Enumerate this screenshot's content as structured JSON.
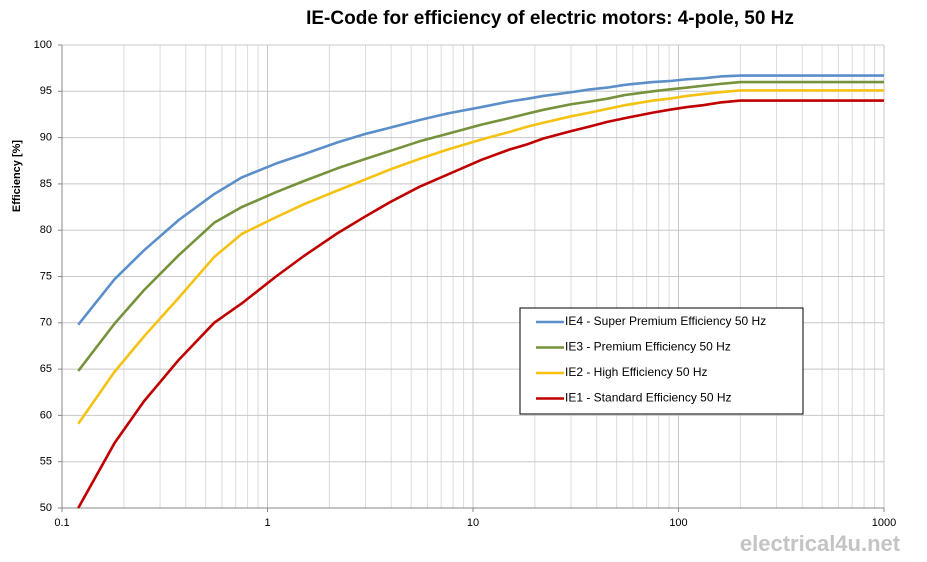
{
  "chart_data": {
    "type": "line",
    "title": "IE-Code for efficiency of electric motors: 4-pole, 50 Hz",
    "y_label": "Efficiency [%]",
    "watermark": "electrical4u.net",
    "x_scale": "log",
    "grid": true,
    "minor_grid": true,
    "legend": "center-right",
    "x": [
      0.12,
      0.18,
      0.25,
      0.37,
      0.55,
      0.75,
      1.1,
      1.5,
      2.2,
      3,
      4,
      5.5,
      7.5,
      11,
      15,
      18.5,
      22,
      30,
      37,
      45,
      55,
      75,
      90,
      110,
      132,
      160,
      200,
      1000
    ],
    "xlim": [
      0.1,
      1000
    ],
    "xticks": [
      0.1,
      1,
      10,
      100,
      1000
    ],
    "ylim": [
      50,
      100
    ],
    "yticks": [
      50,
      55,
      60,
      65,
      70,
      75,
      80,
      85,
      90,
      95,
      100
    ],
    "series": [
      {
        "name": "IE4 - Super Premium Efficiency 50 Hz",
        "color": "#5b8fc9",
        "values": [
          69.8,
          74.7,
          77.8,
          81.1,
          83.9,
          85.7,
          87.2,
          88.2,
          89.5,
          90.4,
          91.1,
          91.9,
          92.6,
          93.3,
          93.9,
          94.2,
          94.5,
          94.9,
          95.2,
          95.4,
          95.7,
          96.0,
          96.1,
          96.3,
          96.4,
          96.6,
          96.7,
          96.7
        ]
      },
      {
        "name": "IE3 - Premium Efficiency 50 Hz",
        "color": "#76923c",
        "values": [
          64.8,
          69.9,
          73.5,
          77.3,
          80.8,
          82.5,
          84.1,
          85.3,
          86.7,
          87.7,
          88.6,
          89.6,
          90.4,
          91.4,
          92.1,
          92.6,
          93.0,
          93.6,
          93.9,
          94.2,
          94.6,
          95.0,
          95.2,
          95.4,
          95.6,
          95.8,
          96.0,
          96.0
        ]
      },
      {
        "name": "IE2 - High Efficiency 50 Hz",
        "color": "#f5c211",
        "values": [
          59.1,
          64.7,
          68.5,
          72.7,
          77.1,
          79.6,
          81.4,
          82.8,
          84.3,
          85.5,
          86.6,
          87.7,
          88.7,
          89.8,
          90.6,
          91.2,
          91.6,
          92.3,
          92.7,
          93.1,
          93.5,
          94.0,
          94.2,
          94.5,
          94.7,
          94.9,
          95.1,
          95.1
        ]
      },
      {
        "name": "IE1 - Standard Efficiency 50 Hz",
        "color": "#c00000",
        "values": [
          50.0,
          57.0,
          61.5,
          66.0,
          70.0,
          72.1,
          75.0,
          77.2,
          79.7,
          81.5,
          83.1,
          84.7,
          86.0,
          87.6,
          88.7,
          89.3,
          89.9,
          90.7,
          91.2,
          91.7,
          92.1,
          92.7,
          93.0,
          93.3,
          93.5,
          93.8,
          94.0,
          94.0
        ]
      }
    ]
  }
}
